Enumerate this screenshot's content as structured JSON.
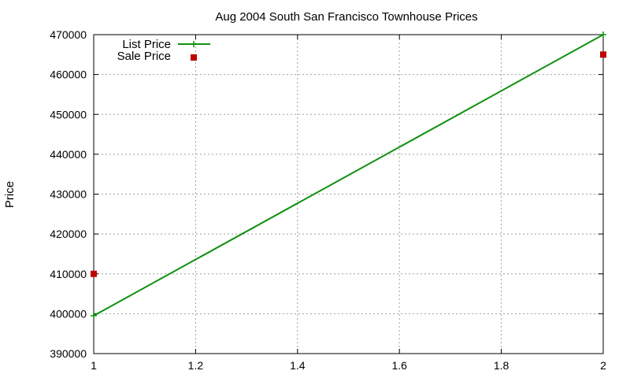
{
  "chart_data": {
    "type": "line",
    "title": "Aug 2004 South San Francisco Townhouse Prices",
    "xlabel": "",
    "ylabel": "Price",
    "xlim": [
      1,
      2
    ],
    "ylim": [
      390000,
      470000
    ],
    "x_ticks": [
      1,
      1.2,
      1.4,
      1.6,
      1.8,
      2
    ],
    "x_tick_labels": [
      "1",
      "1.2",
      "1.4",
      "1.6",
      "1.8",
      "2"
    ],
    "y_ticks": [
      390000,
      400000,
      410000,
      420000,
      430000,
      440000,
      450000,
      460000,
      470000
    ],
    "y_tick_labels": [
      "390000",
      "400000",
      "410000",
      "420000",
      "430000",
      "440000",
      "450000",
      "460000",
      "470000"
    ],
    "grid": true,
    "legend_position": "top-left",
    "series": [
      {
        "name": "List Price",
        "style": "linespoints",
        "color": "#109010",
        "x": [
          1,
          2
        ],
        "y": [
          399500,
          470000
        ]
      },
      {
        "name": "Sale Price",
        "style": "points",
        "color": "#c00000",
        "x": [
          1,
          2
        ],
        "y": [
          410000,
          465000
        ]
      }
    ]
  }
}
